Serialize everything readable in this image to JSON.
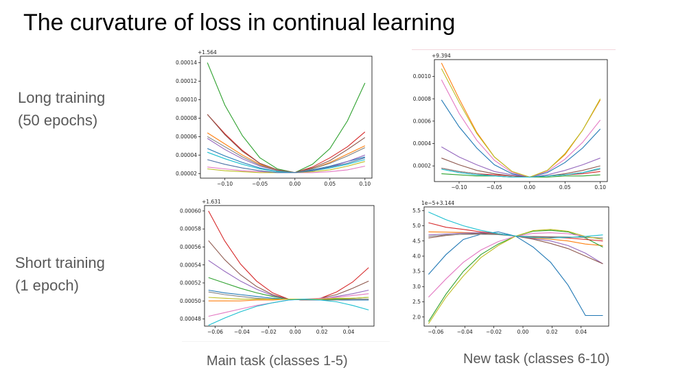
{
  "slide": {
    "title": "The curvature of loss in continual learning",
    "rows": [
      {
        "line1": "Long training",
        "line2": "(50 epochs)"
      },
      {
        "line1": "Short training",
        "line2": "(1 epoch)"
      }
    ],
    "columns": [
      "Main task (classes 1-5)",
      "New task (classes 6-10)"
    ]
  },
  "chart_data": [
    {
      "type": "line",
      "offset_label": "+1.564",
      "x": [
        -0.125,
        -0.1,
        -0.075,
        -0.05,
        -0.025,
        0.0,
        0.025,
        0.05,
        0.075,
        0.1
      ],
      "xlim": [
        -0.135,
        0.11
      ],
      "ylim": [
        1.5e-05,
        0.000147
      ],
      "xticks": [
        -0.1,
        -0.05,
        0.0,
        0.05,
        0.1
      ],
      "xtick_labels": [
        "−0.10",
        "−0.05",
        "0.00",
        "0.05",
        "0.10"
      ],
      "yticks": [
        2e-05,
        4e-05,
        6e-05,
        8e-05,
        0.0001,
        0.00012,
        0.00014
      ],
      "ytick_labels": [
        "0.00002",
        "0.00004",
        "0.00006",
        "0.00008",
        "0.00010",
        "0.00012",
        "0.00014"
      ],
      "series": [
        {
          "color": "#1f77b4",
          "values": [
            4.7e-05,
            3.9e-05,
            3.2e-05,
            2.6e-05,
            2.2e-05,
            2.1e-05,
            2.4e-05,
            2.8e-05,
            3.3e-05,
            3.8e-05
          ]
        },
        {
          "color": "#ff7f0e",
          "values": [
            6.4e-05,
            5.2e-05,
            4e-05,
            3e-05,
            2.3e-05,
            2.1e-05,
            2.5e-05,
            3.2e-05,
            4.1e-05,
            5e-05
          ]
        },
        {
          "color": "#2ca02c",
          "values": [
            0.00014,
            9.4e-05,
            6.1e-05,
            3.7e-05,
            2.5e-05,
            2.1e-05,
            3e-05,
            4.7e-05,
            7.7e-05,
            0.000118
          ]
        },
        {
          "color": "#d62728",
          "values": [
            8.4e-05,
            6.3e-05,
            4.5e-05,
            3.1e-05,
            2.4e-05,
            2.1e-05,
            2.7e-05,
            3.7e-05,
            4.9e-05,
            6.5e-05
          ]
        },
        {
          "color": "#9467bd",
          "values": [
            5.8e-05,
            4.6e-05,
            3.6e-05,
            2.8e-05,
            2.3e-05,
            2.1e-05,
            2.3e-05,
            2.7e-05,
            3.3e-05,
            4e-05
          ]
        },
        {
          "color": "#8c564b",
          "values": [
            8.4e-05,
            6.2e-05,
            4.4e-05,
            3.1e-05,
            2.4e-05,
            2.1e-05,
            2.6e-05,
            3.4e-05,
            4.6e-05,
            5.9e-05
          ]
        },
        {
          "color": "#e377c2",
          "values": [
            2.7e-05,
            2.5e-05,
            2.3e-05,
            2.2e-05,
            2.1e-05,
            2.1e-05,
            2.1e-05,
            2.2e-05,
            2.4e-05,
            2.8e-05
          ]
        },
        {
          "color": "#7f7f7f",
          "values": [
            6e-05,
            4.9e-05,
            3.8e-05,
            2.9e-05,
            2.3e-05,
            2.1e-05,
            2.5e-05,
            3.1e-05,
            3.9e-05,
            4.8e-05
          ]
        },
        {
          "color": "#bcbd22",
          "values": [
            2.5e-05,
            2.3e-05,
            2.2e-05,
            2.1e-05,
            2.1e-05,
            2.1e-05,
            2.2e-05,
            2.4e-05,
            2.8e-05,
            3.3e-05
          ]
        },
        {
          "color": "#17becf",
          "values": [
            4.3e-05,
            3.6e-05,
            3e-05,
            2.5e-05,
            2.2e-05,
            2.1e-05,
            2.3e-05,
            2.6e-05,
            3e-05,
            3.5e-05
          ]
        },
        {
          "color": "#4a6fa5",
          "values": [
            3.5e-05,
            3e-05,
            2.6e-05,
            2.3e-05,
            2.1e-05,
            2.1e-05,
            2.3e-05,
            2.7e-05,
            3.1e-05,
            3.7e-05
          ]
        }
      ]
    },
    {
      "type": "line",
      "offset_label": "+9.394",
      "x": [
        -0.125,
        -0.1,
        -0.075,
        -0.05,
        -0.025,
        0.0,
        0.025,
        0.05,
        0.075,
        0.1
      ],
      "xlim": [
        -0.135,
        0.11
      ],
      "ylim": [
        6e-05,
        0.00115
      ],
      "xticks": [
        -0.1,
        -0.05,
        0.0,
        0.05,
        0.1
      ],
      "xtick_labels": [
        "−0.10",
        "−0.05",
        "0.00",
        "0.05",
        "0.10"
      ],
      "yticks": [
        0.0002,
        0.0004,
        0.0006,
        0.0008,
        0.001
      ],
      "ytick_labels": [
        "0.0002",
        "0.0004",
        "0.0006",
        "0.0008",
        "0.0010"
      ],
      "series": [
        {
          "color": "#1f77b4",
          "values": [
            0.00079,
            0.00055,
            0.00036,
            0.00021,
            0.00013,
            0.0001,
            0.00014,
            0.00023,
            0.00036,
            0.00053
          ]
        },
        {
          "color": "#ff7f0e",
          "values": [
            0.00112,
            0.0008,
            0.0005,
            0.00028,
            0.00015,
            0.0001,
            0.00016,
            0.0003,
            0.00052,
            0.00079
          ]
        },
        {
          "color": "#2ca02c",
          "values": [
            0.00013,
            0.00012,
            0.00011,
            0.00011,
            0.0001,
            0.0001,
            0.0001,
            0.00011,
            0.00011,
            0.00012
          ]
        },
        {
          "color": "#d62728",
          "values": [
            0.00018,
            0.00015,
            0.00013,
            0.00012,
            0.00011,
            0.0001,
            0.00011,
            0.00012,
            0.00013,
            0.00015
          ]
        },
        {
          "color": "#9467bd",
          "values": [
            0.00037,
            0.00028,
            0.00021,
            0.00015,
            0.00012,
            0.0001,
            0.00012,
            0.00016,
            0.00021,
            0.00027
          ]
        },
        {
          "color": "#8c564b",
          "values": [
            0.00027,
            0.00021,
            0.00016,
            0.00013,
            0.00011,
            0.0001,
            0.00011,
            0.00013,
            0.00016,
            0.0002
          ]
        },
        {
          "color": "#e377c2",
          "values": [
            0.00097,
            0.00067,
            0.00043,
            0.00025,
            0.00014,
            0.0001,
            0.00015,
            0.00026,
            0.00041,
            0.00061
          ]
        },
        {
          "color": "#7f7f7f",
          "values": [
            0.00018,
            0.00015,
            0.00013,
            0.00011,
            0.0001,
            0.0001,
            0.00011,
            0.00012,
            0.00014,
            0.00017
          ]
        },
        {
          "color": "#bcbd22",
          "values": [
            0.00107,
            0.00077,
            0.00049,
            0.00028,
            0.00015,
            0.0001,
            0.00016,
            0.00031,
            0.00052,
            0.0008
          ]
        },
        {
          "color": "#17becf",
          "values": [
            0.00017,
            0.00014,
            0.00012,
            0.00011,
            0.0001,
            0.0001,
            0.00011,
            0.00012,
            0.00014,
            0.00018
          ]
        }
      ]
    },
    {
      "type": "line",
      "offset_label": "+1.631",
      "x": [
        -0.065,
        -0.053,
        -0.041,
        -0.029,
        -0.017,
        -0.005,
        0.007,
        0.019,
        0.031,
        0.043,
        0.055
      ],
      "xlim": [
        -0.068,
        0.059
      ],
      "ylim": [
        0.000472,
        0.000606
      ],
      "xticks": [
        -0.06,
        -0.04,
        -0.02,
        0.0,
        0.02,
        0.04
      ],
      "xtick_labels": [
        "−0.06",
        "−0.04",
        "−0.02",
        "0.00",
        "0.02",
        "0.04"
      ],
      "yticks": [
        0.00048,
        0.0005,
        0.00052,
        0.00054,
        0.00056,
        0.00058,
        0.0006
      ],
      "ytick_labels": [
        "0.00048",
        "0.00050",
        "0.00052",
        "0.00054",
        "0.00056",
        "0.00058",
        "0.00060"
      ],
      "series": [
        {
          "color": "#1f77b4",
          "values": [
            0.000512,
            0.000509,
            0.000507,
            0.000505,
            0.000503,
            0.000502,
            0.000501,
            0.000501,
            0.000501,
            0.000501,
            0.000501
          ]
        },
        {
          "color": "#ff7f0e",
          "values": [
            0.0005,
            0.0005,
            0.0005,
            0.000501,
            0.000501,
            0.000502,
            0.000502,
            0.000502,
            0.000502,
            0.000502,
            0.000502
          ]
        },
        {
          "color": "#2ca02c",
          "values": [
            0.000526,
            0.00052,
            0.000514,
            0.000509,
            0.000505,
            0.000502,
            0.000501,
            0.000501,
            0.000502,
            0.000503,
            0.000504
          ]
        },
        {
          "color": "#d62728",
          "values": [
            0.0006,
            0.000567,
            0.000541,
            0.000522,
            0.000509,
            0.000502,
            0.000501,
            0.000503,
            0.00051,
            0.000521,
            0.000537
          ]
        },
        {
          "color": "#9467bd",
          "values": [
            0.000545,
            0.000533,
            0.000522,
            0.000513,
            0.000506,
            0.000502,
            0.000501,
            0.000502,
            0.000505,
            0.000508,
            0.000512
          ]
        },
        {
          "color": "#8c564b",
          "values": [
            0.000567,
            0.000546,
            0.000529,
            0.000516,
            0.000507,
            0.000502,
            0.000501,
            0.000503,
            0.000507,
            0.000514,
            0.000522
          ]
        },
        {
          "color": "#e377c2",
          "values": [
            0.000483,
            0.000487,
            0.000491,
            0.000495,
            0.000498,
            0.000501,
            0.000502,
            0.000503,
            0.000504,
            0.000506,
            0.000508
          ]
        },
        {
          "color": "#7f7f7f",
          "values": [
            0.00051,
            0.000507,
            0.000505,
            0.000503,
            0.000502,
            0.000502,
            0.000501,
            0.000501,
            0.000501,
            0.000502,
            0.000502
          ]
        },
        {
          "color": "#bcbd22",
          "values": [
            0.000504,
            0.000503,
            0.000502,
            0.000502,
            0.000502,
            0.000502,
            0.000502,
            0.000502,
            0.000503,
            0.000503,
            0.000504
          ]
        },
        {
          "color": "#17becf",
          "values": [
            0.000473,
            0.000481,
            0.000488,
            0.000494,
            0.000498,
            0.000501,
            0.000502,
            0.000501,
            0.000499,
            0.000495,
            0.00049
          ]
        }
      ]
    },
    {
      "type": "line",
      "offset_label": "1e−5+3.144",
      "x": [
        -0.065,
        -0.053,
        -0.041,
        -0.029,
        -0.017,
        -0.005,
        0.007,
        0.019,
        0.031,
        0.043,
        0.055
      ],
      "xlim": [
        -0.068,
        0.059
      ],
      "ylim": [
        1.7,
        5.62
      ],
      "xticks": [
        -0.06,
        -0.04,
        -0.02,
        0.0,
        0.02,
        0.04
      ],
      "xtick_labels": [
        "−0.06",
        "−0.04",
        "−0.02",
        "0.00",
        "0.02",
        "0.04"
      ],
      "yticks": [
        2.0,
        2.5,
        3.0,
        3.5,
        4.0,
        4.5,
        5.0,
        5.5
      ],
      "ytick_labels": [
        "2.0",
        "2.5",
        "3.0",
        "3.5",
        "4.0",
        "4.5",
        "5.0",
        "5.5"
      ],
      "series": [
        {
          "color": "#1f77b4",
          "values": [
            3.4,
            4.05,
            4.55,
            4.72,
            4.8,
            4.66,
            4.3,
            3.8,
            3.05,
            2.05,
            2.05
          ]
        },
        {
          "color": "#ff7f0e",
          "values": [
            4.8,
            4.79,
            4.78,
            4.76,
            4.73,
            4.66,
            4.6,
            4.56,
            4.5,
            4.4,
            4.35
          ]
        },
        {
          "color": "#2ca02c",
          "values": [
            1.85,
            2.75,
            3.5,
            4.05,
            4.4,
            4.66,
            4.82,
            4.85,
            4.8,
            4.6,
            4.3
          ]
        },
        {
          "color": "#d62728",
          "values": [
            5.1,
            4.95,
            4.88,
            4.8,
            4.74,
            4.66,
            4.64,
            4.62,
            4.6,
            4.55,
            4.5
          ]
        },
        {
          "color": "#9467bd",
          "values": [
            4.7,
            4.73,
            4.76,
            4.77,
            4.74,
            4.66,
            4.58,
            4.5,
            4.35,
            4.1,
            3.75
          ]
        },
        {
          "color": "#8c564b",
          "values": [
            4.6,
            4.68,
            4.73,
            4.75,
            4.74,
            4.66,
            4.56,
            4.42,
            4.25,
            4.0,
            3.75
          ]
        },
        {
          "color": "#e377c2",
          "values": [
            2.65,
            3.25,
            3.8,
            4.2,
            4.48,
            4.66,
            4.75,
            4.77,
            4.74,
            4.65,
            4.55
          ]
        },
        {
          "color": "#7f7f7f",
          "values": [
            4.65,
            4.7,
            4.72,
            4.72,
            4.71,
            4.66,
            4.65,
            4.64,
            4.63,
            4.62,
            4.6
          ]
        },
        {
          "color": "#bcbd22",
          "values": [
            1.78,
            2.65,
            3.35,
            3.95,
            4.35,
            4.66,
            4.84,
            4.88,
            4.82,
            4.65,
            4.55
          ]
        },
        {
          "color": "#17becf",
          "values": [
            5.45,
            5.2,
            5.0,
            4.85,
            4.74,
            4.66,
            4.62,
            4.6,
            4.62,
            4.65,
            4.7
          ]
        }
      ]
    }
  ]
}
